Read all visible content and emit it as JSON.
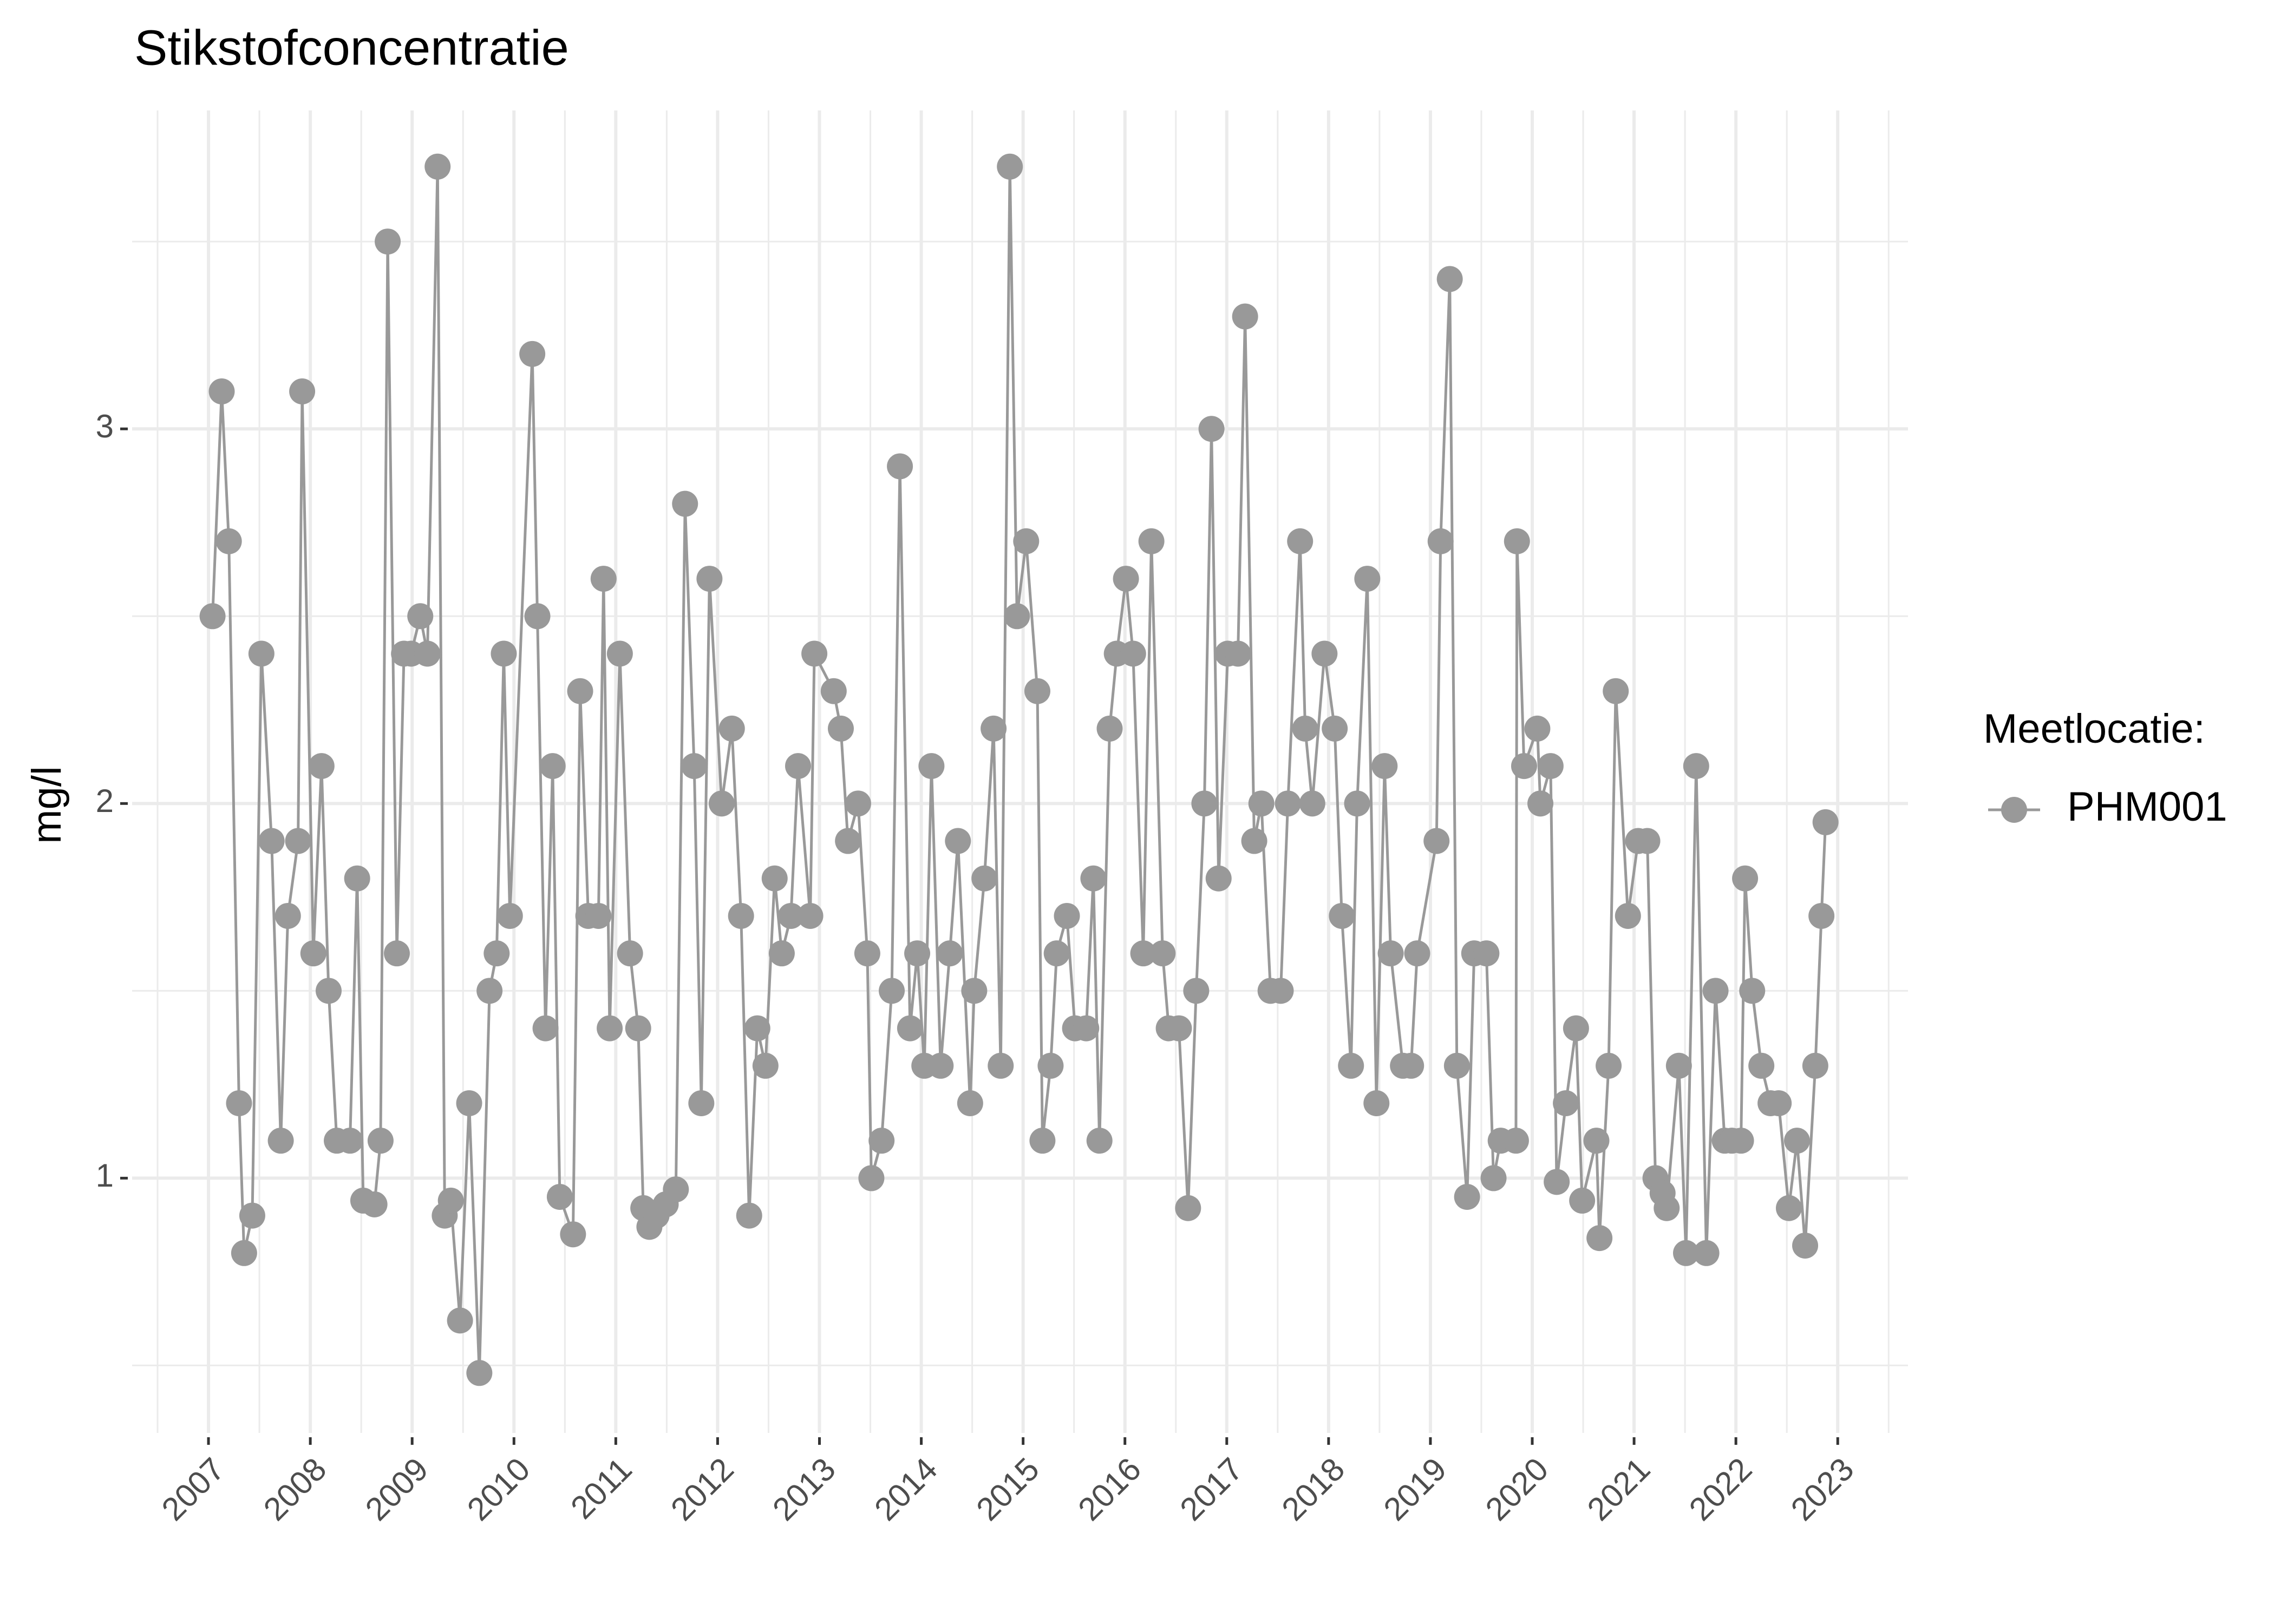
{
  "chart_data": {
    "type": "line",
    "title": "Stikstofconcentratie",
    "y_label": "mg/l",
    "legend_title": "Meetlocatie:",
    "legend_position": "right",
    "grid": true,
    "xlim": [
      2006.25,
      2023.69
    ],
    "ylim": [
      0.32,
      3.85
    ],
    "xticks": [
      2007,
      2008,
      2009,
      2010,
      2011,
      2012,
      2013,
      2014,
      2015,
      2016,
      2017,
      2018,
      2019,
      2020,
      2021,
      2022,
      2023
    ],
    "xminorticks": [
      2006.5,
      2007.5,
      2008.5,
      2009.5,
      2010.5,
      2011.5,
      2012.5,
      2013.5,
      2014.5,
      2015.5,
      2016.5,
      2017.5,
      2018.5,
      2019.5,
      2020.5,
      2021.5,
      2022.5,
      2023.5
    ],
    "yticks": [
      1,
      2,
      3
    ],
    "yminorticks": [
      0.5,
      1.5,
      2.5,
      3.5
    ],
    "x": [
      2007.04,
      2007.13,
      2007.2,
      2007.3,
      2007.35,
      2007.43,
      2007.52,
      2007.62,
      2007.71,
      2007.78,
      2007.88,
      2007.92,
      2008.03,
      2008.11,
      2008.18,
      2008.26,
      2008.39,
      2008.46,
      2008.52,
      2008.63,
      2008.69,
      2008.76,
      2008.85,
      2008.92,
      2008.99,
      2009.08,
      2009.15,
      2009.25,
      2009.32,
      2009.38,
      2009.47,
      2009.56,
      2009.66,
      2009.76,
      2009.83,
      2009.9,
      2009.96,
      2010.18,
      2010.23,
      2010.31,
      2010.38,
      2010.45,
      2010.58,
      2010.65,
      2010.73,
      2010.83,
      2010.88,
      2010.94,
      2011.04,
      2011.14,
      2011.22,
      2011.27,
      2011.33,
      2011.4,
      2011.49,
      2011.59,
      2011.68,
      2011.77,
      2011.84,
      2011.92,
      2012.04,
      2012.14,
      2012.23,
      2012.31,
      2012.39,
      2012.47,
      2012.56,
      2012.63,
      2012.72,
      2012.79,
      2012.91,
      2012.95,
      2013.14,
      2013.21,
      2013.28,
      2013.38,
      2013.47,
      2013.51,
      2013.61,
      2013.71,
      2013.79,
      2013.89,
      2013.96,
      2014.03,
      2014.1,
      2014.19,
      2014.28,
      2014.36,
      2014.48,
      2014.52,
      2014.62,
      2014.71,
      2014.78,
      2014.87,
      2014.94,
      2015.03,
      2015.14,
      2015.19,
      2015.27,
      2015.33,
      2015.43,
      2015.51,
      2015.62,
      2015.69,
      2015.75,
      2015.85,
      2015.92,
      2016.01,
      2016.08,
      2016.18,
      2016.26,
      2016.37,
      2016.43,
      2016.53,
      2016.62,
      2016.7,
      2016.78,
      2016.85,
      2016.92,
      2017.01,
      2017.11,
      2017.18,
      2017.27,
      2017.34,
      2017.43,
      2017.53,
      2017.6,
      2017.72,
      2017.77,
      2017.84,
      2017.96,
      2018.06,
      2018.13,
      2018.22,
      2018.28,
      2018.38,
      2018.47,
      2018.55,
      2018.61,
      2018.73,
      2018.81,
      2018.87,
      2019.06,
      2019.1,
      2019.19,
      2019.26,
      2019.36,
      2019.43,
      2019.55,
      2019.62,
      2019.69,
      2019.84,
      2019.85,
      2019.92,
      2020.05,
      2020.08,
      2020.18,
      2020.24,
      2020.33,
      2020.43,
      2020.49,
      2020.63,
      2020.66,
      2020.75,
      2020.82,
      2020.94,
      2021.04,
      2021.13,
      2021.21,
      2021.28,
      2021.32,
      2021.44,
      2021.51,
      2021.61,
      2021.71,
      2021.8,
      2021.89,
      2021.96,
      2022.05,
      2022.09,
      2022.16,
      2022.25,
      2022.34,
      2022.42,
      2022.52,
      2022.6,
      2022.68,
      2022.78,
      2022.84,
      2022.88
    ],
    "series": [
      {
        "name": "PHM001",
        "color": "#999999",
        "values": [
          2.5,
          3.1,
          2.7,
          1.2,
          0.8,
          0.9,
          2.4,
          1.9,
          1.1,
          1.7,
          1.9,
          3.1,
          1.6,
          2.1,
          1.5,
          1.1,
          1.1,
          1.8,
          0.94,
          0.93,
          1.1,
          3.5,
          1.6,
          2.4,
          2.4,
          2.5,
          2.4,
          3.7,
          0.9,
          0.94,
          0.62,
          1.2,
          0.48,
          1.5,
          1.6,
          2.4,
          1.7,
          3.2,
          2.5,
          1.4,
          2.1,
          0.95,
          0.85,
          2.3,
          1.7,
          1.7,
          2.6,
          1.4,
          2.4,
          1.6,
          1.4,
          0.92,
          0.87,
          0.9,
          0.93,
          0.97,
          2.8,
          2.1,
          1.2,
          2.6,
          2.0,
          2.2,
          1.7,
          0.9,
          1.4,
          1.3,
          1.8,
          1.6,
          1.7,
          2.1,
          1.7,
          2.4,
          2.3,
          2.2,
          1.9,
          2.0,
          1.6,
          1.0,
          1.1,
          1.5,
          2.9,
          1.4,
          1.6,
          1.3,
          2.1,
          1.3,
          1.6,
          1.9,
          1.2,
          1.5,
          1.8,
          2.2,
          1.3,
          3.7,
          2.5,
          2.7,
          2.3,
          1.1,
          1.3,
          1.6,
          1.7,
          1.4,
          1.4,
          1.8,
          1.1,
          2.2,
          2.4,
          2.6,
          2.4,
          1.6,
          2.7,
          1.6,
          1.4,
          1.4,
          0.92,
          1.5,
          2.0,
          3.0,
          1.8,
          2.4,
          2.4,
          3.3,
          1.9,
          2.0,
          1.5,
          1.5,
          2.0,
          2.7,
          2.2,
          2.0,
          2.4,
          2.2,
          1.7,
          1.3,
          2.0,
          2.6,
          1.2,
          2.1,
          1.6,
          1.3,
          1.3,
          1.6,
          1.9,
          2.7,
          3.4,
          1.3,
          0.95,
          1.6,
          1.6,
          1.0,
          1.1,
          1.1,
          2.7,
          2.1,
          2.2,
          2.0,
          2.1,
          0.99,
          1.2,
          1.4,
          0.94,
          1.1,
          0.84,
          1.3,
          2.3,
          1.7,
          1.9,
          1.9,
          1.0,
          0.96,
          0.92,
          1.3,
          0.8,
          2.1,
          0.8,
          1.5,
          1.1,
          1.1,
          1.1,
          1.8,
          1.5,
          1.3,
          1.2,
          1.2,
          0.92,
          1.1,
          0.82,
          1.3,
          1.7,
          1.95
        ]
      }
    ]
  }
}
